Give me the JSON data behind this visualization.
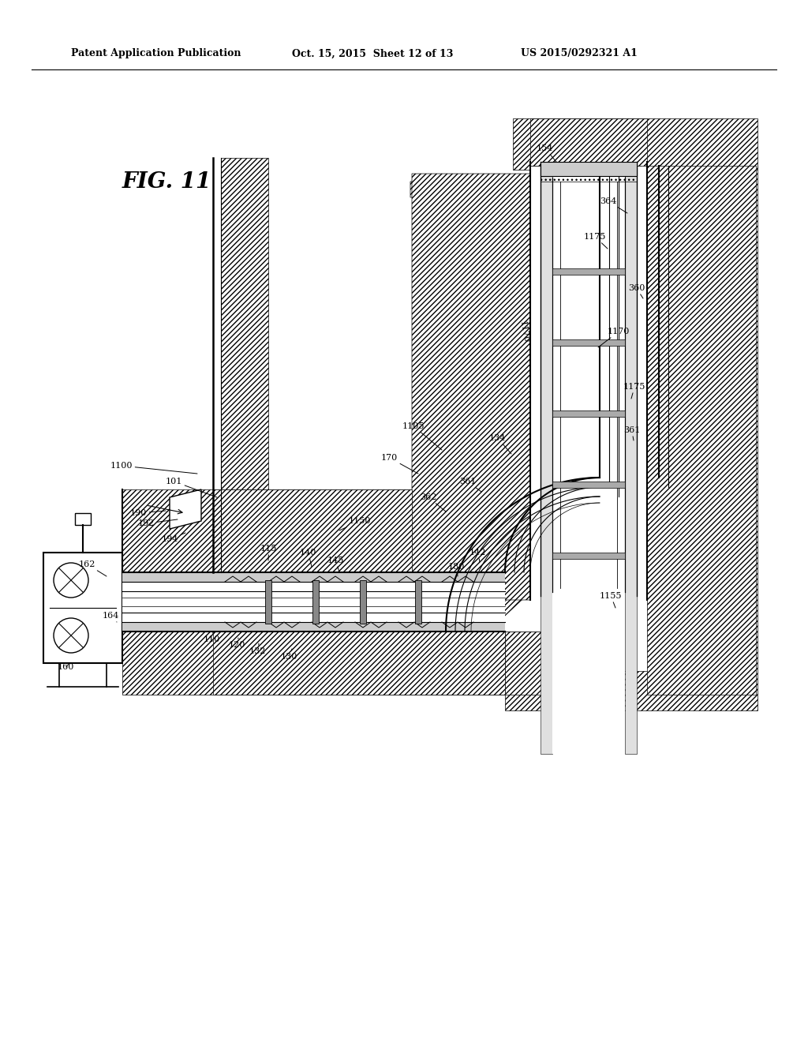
{
  "bg_color": "#ffffff",
  "line_color": "#000000",
  "header_left": "Patent Application Publication",
  "header_center": "Oct. 15, 2015  Sheet 12 of 13",
  "header_right": "US 2015/0292321 A1",
  "fig_label": "FIG. 11"
}
